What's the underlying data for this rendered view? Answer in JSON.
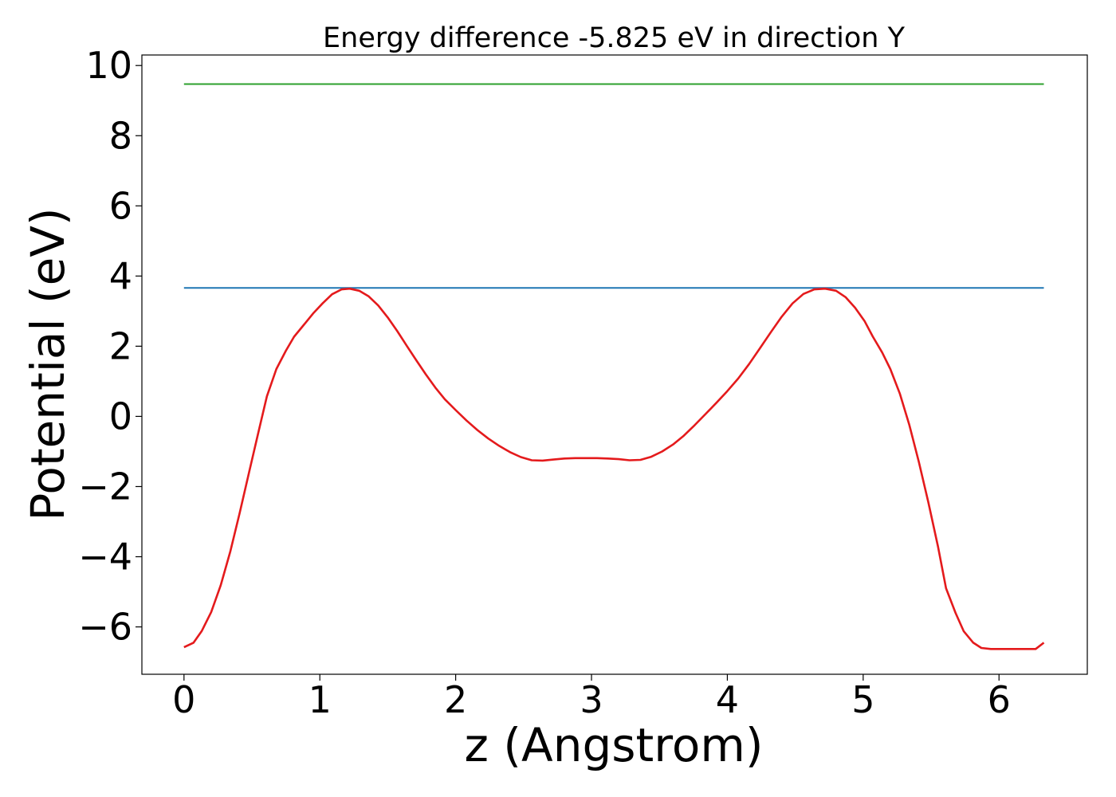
{
  "chart_data": {
    "type": "line",
    "title": "Energy difference -5.825 eV in direction Y",
    "xlabel": "z (Angstrom)",
    "ylabel": "Potential (eV)",
    "xlim": [
      -0.31,
      6.65
    ],
    "ylim": [
      -7.35,
      10.3
    ],
    "xticks": [
      0,
      1,
      2,
      3,
      4,
      5,
      6
    ],
    "xtick_labels": [
      "0",
      "1",
      "2",
      "3",
      "4",
      "5",
      "6"
    ],
    "yticks": [
      -6,
      -4,
      -2,
      0,
      2,
      4,
      6,
      8,
      10
    ],
    "ytick_labels": [
      "−6",
      "−4",
      "−2",
      "0",
      "2",
      "4",
      "6",
      "8",
      "10"
    ],
    "grid": false,
    "series": [
      {
        "color": "#2ca02c",
        "x": [
          0,
          6.33
        ],
        "y": [
          9.47,
          9.47
        ]
      },
      {
        "color": "#1f77b4",
        "x": [
          0,
          6.33
        ],
        "y": [
          3.66,
          3.66
        ]
      },
      {
        "color": "#e41a1c",
        "x": [
          0,
          0.07,
          0.13,
          0.2,
          0.27,
          0.34,
          0.41,
          0.48,
          0.55,
          0.61,
          0.68,
          0.75,
          0.81,
          0.88,
          0.95,
          1.02,
          1.09,
          1.16,
          1.22,
          1.29,
          1.36,
          1.43,
          1.5,
          1.57,
          1.64,
          1.71,
          1.78,
          1.85,
          1.92,
          2.0,
          2.08,
          2.16,
          2.24,
          2.32,
          2.4,
          2.48,
          2.56,
          2.64,
          2.72,
          2.8,
          2.88,
          2.96,
          3.04,
          3.12,
          3.2,
          3.28,
          3.36,
          3.44,
          3.52,
          3.6,
          3.68,
          3.76,
          3.84,
          3.92,
          4.0,
          4.08,
          4.16,
          4.24,
          4.32,
          4.4,
          4.48,
          4.56,
          4.64,
          4.72,
          4.8,
          4.87,
          4.94,
          5.01,
          5.07,
          5.14,
          5.2,
          5.27,
          5.34,
          5.41,
          5.48,
          5.55,
          5.61,
          5.68,
          5.74,
          5.81,
          5.87,
          5.94,
          6.01,
          6.07,
          6.14,
          6.2,
          6.27,
          6.33
        ],
        "y": [
          -6.58,
          -6.45,
          -6.12,
          -5.58,
          -4.82,
          -3.86,
          -2.75,
          -1.58,
          -0.42,
          0.57,
          1.35,
          1.87,
          2.27,
          2.6,
          2.93,
          3.22,
          3.48,
          3.62,
          3.64,
          3.58,
          3.42,
          3.16,
          2.82,
          2.43,
          2.01,
          1.6,
          1.2,
          0.82,
          0.49,
          0.18,
          -0.12,
          -0.39,
          -0.63,
          -0.84,
          -1.02,
          -1.16,
          -1.25,
          -1.26,
          -1.23,
          -1.2,
          -1.19,
          -1.19,
          -1.19,
          -1.2,
          -1.22,
          -1.25,
          -1.24,
          -1.15,
          -1.0,
          -0.8,
          -0.55,
          -0.25,
          0.07,
          0.39,
          0.72,
          1.08,
          1.49,
          1.94,
          2.4,
          2.84,
          3.22,
          3.49,
          3.62,
          3.64,
          3.58,
          3.4,
          3.1,
          2.72,
          2.28,
          1.82,
          1.35,
          0.65,
          -0.25,
          -1.3,
          -2.45,
          -3.7,
          -4.9,
          -5.6,
          -6.12,
          -6.45,
          -6.6,
          -6.63,
          -6.63,
          -6.63,
          -6.63,
          -6.63,
          -6.63,
          -6.45
        ]
      }
    ]
  }
}
